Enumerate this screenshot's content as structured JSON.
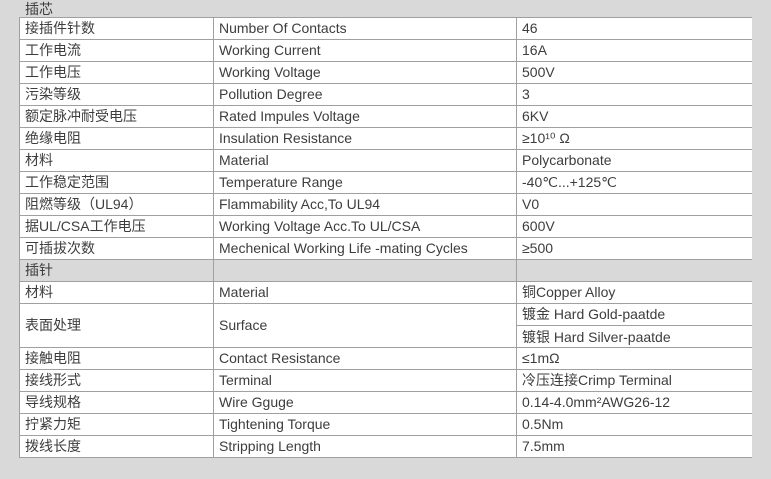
{
  "colors": {
    "page_bg": "#d9d9d9",
    "cell_bg": "#ffffff",
    "border": "#a0a0a0",
    "text": "#3d3d3d"
  },
  "table": {
    "sections": [
      {
        "title": "插芯",
        "rows": [
          {
            "label_cn": "接插件针数",
            "label_en": "Number Of Contacts",
            "values": [
              "46"
            ]
          },
          {
            "label_cn": "工作电流",
            "label_en": "Working Current",
            "values": [
              "16A"
            ]
          },
          {
            "label_cn": "工作电压",
            "label_en": "Working Voltage",
            "values": [
              "500V"
            ]
          },
          {
            "label_cn": "污染等级",
            "label_en": "Pollution Degree",
            "values": [
              "3"
            ]
          },
          {
            "label_cn": "额定脉冲耐受电压",
            "label_en": "Rated Impules Voltage",
            "values": [
              "6KV"
            ]
          },
          {
            "label_cn": "绝缘电阻",
            "label_en": "Insulation Resistance",
            "values": [
              "≥10¹⁰ Ω"
            ]
          },
          {
            "label_cn": "材料",
            "label_en": "Material",
            "values": [
              "Polycarbonate"
            ]
          },
          {
            "label_cn": "工作稳定范围",
            "label_en": "Temperature Range",
            "values": [
              "-40℃...+125℃"
            ]
          },
          {
            "label_cn": "阻燃等级（UL94）",
            "label_en": "Flammability Acc,To UL94",
            "values": [
              "V0"
            ]
          },
          {
            "label_cn": "据UL/CSA工作电压",
            "label_en": "Working Voltage Acc.To UL/CSA",
            "values": [
              "600V"
            ]
          },
          {
            "label_cn": "可插拔次数",
            "label_en": "Mechenical Working Life -mating Cycles",
            "values": [
              "≥500"
            ]
          }
        ]
      },
      {
        "title": "插针",
        "rows": [
          {
            "label_cn": "材料",
            "label_en": "Material",
            "values": [
              "铜Copper Alloy"
            ]
          },
          {
            "label_cn": "表面处理",
            "label_en": "Surface",
            "values": [
              "镀金 Hard Gold-paatde",
              "镀银 Hard Silver-paatde"
            ]
          },
          {
            "label_cn": "接触电阻",
            "label_en": "Contact Resistance",
            "values": [
              "≤1mΩ"
            ]
          },
          {
            "label_cn": "接线形式",
            "label_en": "Terminal",
            "values": [
              "冷压连接Crimp Terminal"
            ]
          },
          {
            "label_cn": "导线规格",
            "label_en": "Wire Gguge",
            "values": [
              "0.14-4.0mm²AWG26-12"
            ]
          },
          {
            "label_cn": "拧紧力矩",
            "label_en": "Tightening Torque",
            "values": [
              "0.5Nm"
            ]
          },
          {
            "label_cn": "拨线长度",
            "label_en": "Stripping Length",
            "values": [
              "7.5mm"
            ]
          }
        ]
      }
    ]
  }
}
